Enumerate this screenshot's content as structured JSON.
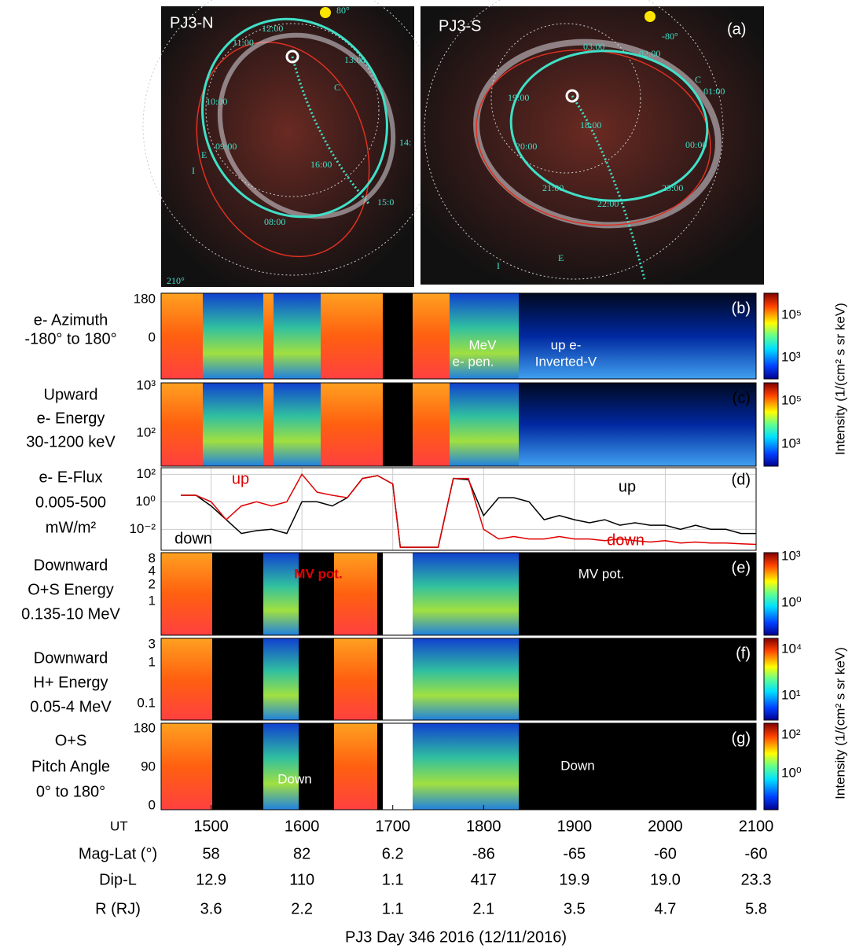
{
  "figure": {
    "panel_a": "(a)",
    "image_left": {
      "title": "PJ3-N",
      "labels": [
        "80°",
        "12:00",
        "11:00",
        "13:00",
        "10:00",
        "C",
        "14:",
        "E",
        "I",
        "09:00",
        "16:00",
        "15:0",
        "08:00",
        "210°"
      ]
    },
    "image_right": {
      "title": "PJ3-S",
      "labels": [
        "-80°",
        "03:00",
        "02:00",
        "C",
        "01:00",
        "19:00",
        "18:00",
        "20:00",
        "00:00",
        "21:00",
        "23:00",
        "22:00",
        "I",
        "E"
      ]
    },
    "panels": [
      {
        "tag": "(b)",
        "label": [
          "e- Azimuth",
          "-180° to 180°"
        ],
        "yticks": [
          "180",
          "0"
        ],
        "cbar_ticks": [
          "10⁵",
          "10³"
        ]
      },
      {
        "tag": "(c)",
        "label": [
          "Upward",
          "e- Energy",
          "30-1200 keV"
        ],
        "yticks": [
          "10³",
          "10²"
        ],
        "cbar_ticks": [
          "10⁵",
          "10³"
        ],
        "annotations": [
          "MeV",
          "e- pen.",
          "up e-",
          "Inverted-V"
        ]
      },
      {
        "tag": "(e)",
        "label": [
          "Downward",
          "O+S Energy",
          "0.135-10 MeV"
        ],
        "yticks": [
          "8",
          "4",
          "2",
          "1"
        ],
        "cbar_ticks": [
          "10³",
          "10⁰"
        ],
        "annotations": [
          "MV pot.",
          "MV pot."
        ]
      },
      {
        "tag": "(f)",
        "label": [
          "Downward",
          "H+ Energy",
          "0.05-4 MeV"
        ],
        "yticks": [
          "3",
          "1",
          "0.1"
        ],
        "cbar_ticks": [
          "10⁴",
          "10¹"
        ]
      },
      {
        "tag": "(g)",
        "label": [
          "O+S",
          "Pitch Angle",
          "0° to 180°"
        ],
        "yticks": [
          "180",
          "90",
          "0"
        ],
        "cbar_ticks": [
          "10²",
          "10⁰"
        ],
        "annotations": [
          "Down",
          "Down"
        ]
      }
    ],
    "cbar_titles": [
      "Intensity (1/(cm² s sr keV)",
      "Intensity (1/(cm² s sr keV)"
    ],
    "ut_label": "UT",
    "rows": [
      {
        "name": "Mag-Lat (°)",
        "values": [
          "58",
          "82",
          "6.2",
          "-86",
          "-65",
          "-60",
          "-60"
        ]
      },
      {
        "name": "Dip-L",
        "values": [
          "12.9",
          "110",
          "1.1",
          "417",
          "19.9",
          "19.0",
          "23.3"
        ]
      },
      {
        "name": "R (RJ)",
        "values": [
          "3.6",
          "2.2",
          "1.1",
          "2.1",
          "3.5",
          "4.7",
          "5.8"
        ]
      }
    ],
    "caption": "PJ3  Day 346 2016  (12/11/2016)"
  },
  "chart_data": {
    "type": "line",
    "tag": "(d)",
    "ylabel": [
      "e- E-Flux",
      "0.005-500",
      "mW/m²"
    ],
    "x": [
      1440,
      1450,
      1500,
      1510,
      1520,
      1530,
      1540,
      1550,
      1600,
      1610,
      1620,
      1630,
      1640,
      1650,
      1700,
      1705,
      1720,
      1730,
      1740,
      1750,
      1800,
      1810,
      1820,
      1830,
      1840,
      1850,
      1900,
      1910,
      1920,
      1930,
      1940,
      1950,
      2000,
      2010,
      2020,
      2030,
      2040,
      2050,
      2100
    ],
    "series": [
      {
        "color": "#000000",
        "values": [
          3,
          3,
          0.5,
          0.05,
          0.005,
          0.008,
          0.01,
          0.005,
          1,
          1,
          0.5,
          2,
          50,
          80,
          20,
          0.0005,
          0.0005,
          0.0005,
          50,
          40,
          0.1,
          2,
          2,
          1,
          0.05,
          0.1,
          0.05,
          0.03,
          0.05,
          0.02,
          0.03,
          0.02,
          0.02,
          0.01,
          0.02,
          0.01,
          0.01,
          0.005,
          0.005
        ]
      },
      {
        "color": "#e00000",
        "values": [
          3,
          3,
          1,
          0.05,
          0.5,
          1,
          0.5,
          1,
          100,
          5,
          3,
          2,
          50,
          80,
          20,
          0.0005,
          0.0005,
          0.0005,
          50,
          50,
          0.01,
          0.002,
          0.003,
          0.002,
          0.002,
          0.003,
          0.002,
          0.002,
          0.0015,
          0.002,
          0.0015,
          0.0012,
          0.0015,
          0.001,
          0.0012,
          0.001,
          0.001,
          0.0009,
          0.0008
        ]
      }
    ],
    "annotations": [
      {
        "text": "up",
        "color": "#e00000"
      },
      {
        "text": "down",
        "color": "#000000"
      },
      {
        "text": "up",
        "color": "#000000"
      },
      {
        "text": "down",
        "color": "#e00000"
      }
    ],
    "xlim": [
      1427,
      2100
    ],
    "xticks": [
      1500,
      1600,
      1700,
      1800,
      1900,
      2000,
      2100
    ],
    "ylim": [
      0.0003,
      300
    ],
    "yticks": [
      {
        "value": 100,
        "label": "10²"
      },
      {
        "value": 1,
        "label": "10⁰"
      },
      {
        "value": 0.01,
        "label": "10⁻²"
      }
    ],
    "log_y": true,
    "grid": true
  }
}
